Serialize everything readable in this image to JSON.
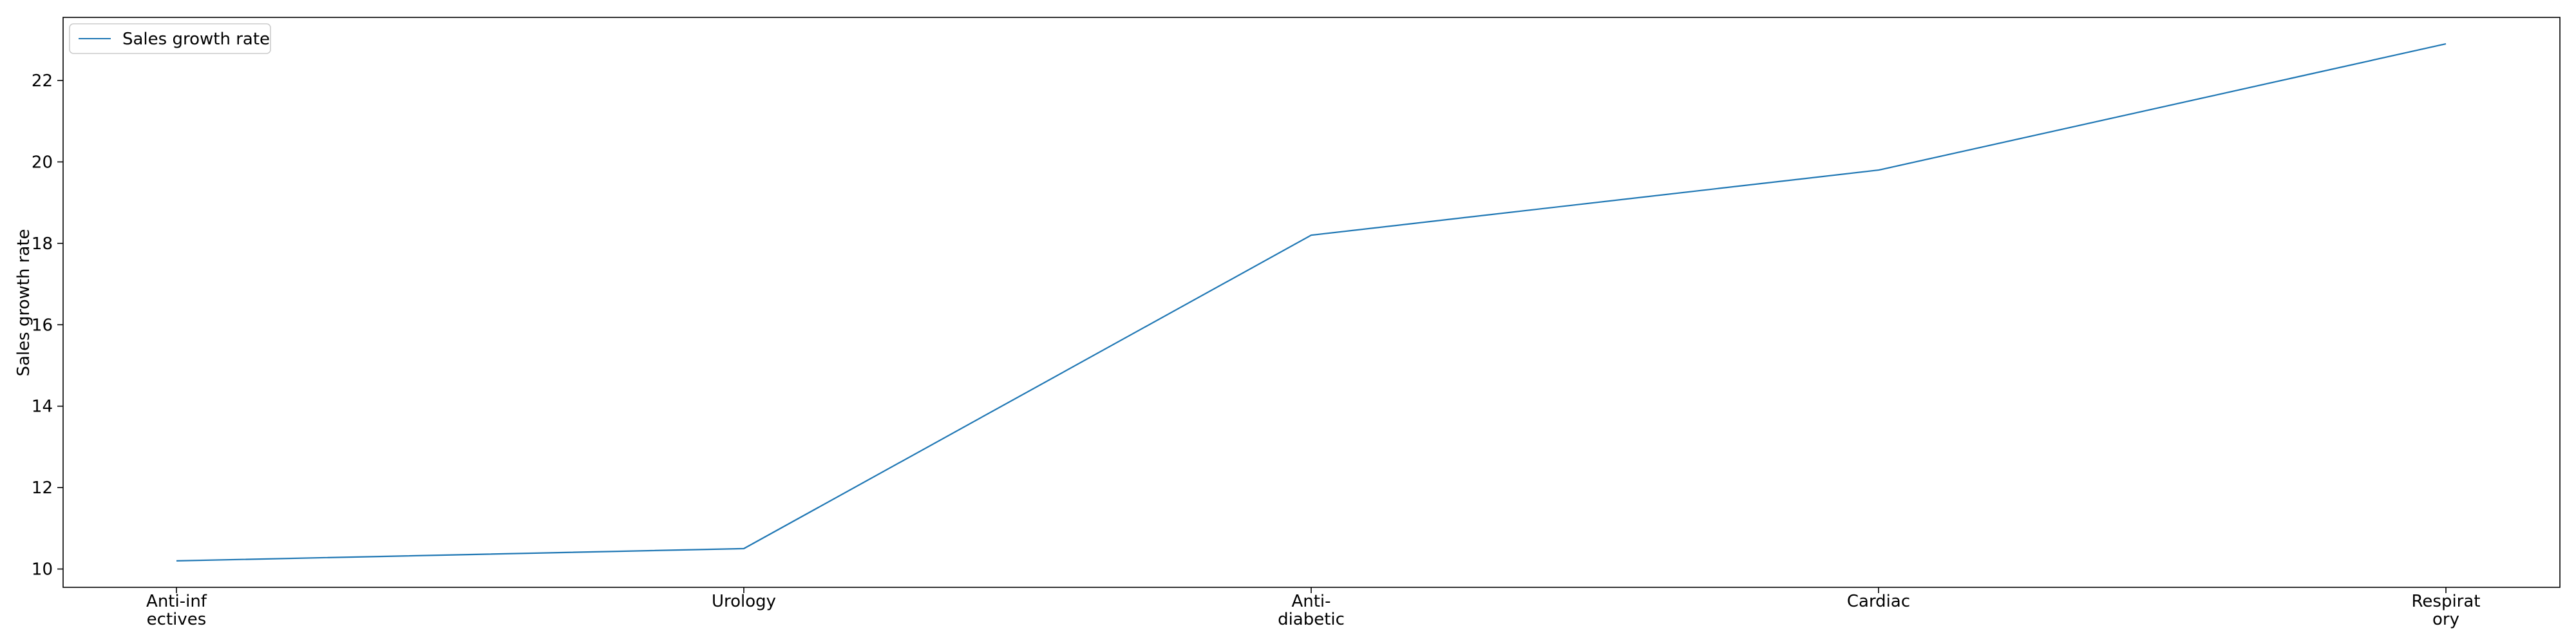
{
  "chart_data": {
    "type": "line",
    "categories": [
      [
        "Anti-inf",
        "ectives"
      ],
      [
        "Urology"
      ],
      [
        "Anti-",
        "diabetic"
      ],
      [
        "Cardiac"
      ],
      [
        "Respirat",
        "ory"
      ]
    ],
    "series": [
      {
        "name": "Sales growth rate",
        "values": [
          10.2,
          10.5,
          18.2,
          19.8,
          22.9
        ],
        "color": "#1f77b4"
      }
    ],
    "ylabel": "Sales growth rate",
    "xlabel": "",
    "yticks": [
      10,
      12,
      14,
      16,
      18,
      20,
      22
    ],
    "ylim": [
      9.55,
      23.55
    ],
    "grid": false,
    "legend_position": "upper-left"
  }
}
